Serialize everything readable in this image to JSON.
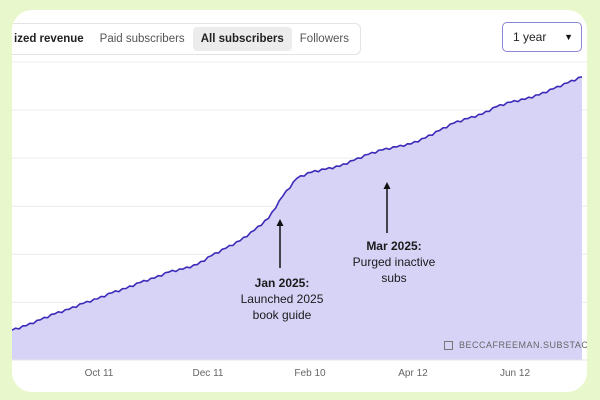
{
  "tabs": [
    {
      "label": "ized revenue"
    },
    {
      "label": "Paid subscribers"
    },
    {
      "label": "All subscribers"
    },
    {
      "label": "Followers"
    }
  ],
  "range_select": {
    "value": "1 year"
  },
  "annotations": [
    {
      "title": "Jan 2025:",
      "text_line1": "Launched 2025",
      "text_line2": "book guide"
    },
    {
      "title": "Mar 2025:",
      "text_line1": "Purged inactive",
      "text_line2": "subs"
    }
  ],
  "watermark": "BECCAFREEMAN.SUBSTACK.",
  "colors": {
    "line": "#3b2bb8",
    "fill": "#d6d3f7",
    "grid": "#ececec",
    "frame": "#e8f8cc"
  },
  "chart_data": {
    "type": "area",
    "title": "",
    "xlabel": "",
    "ylabel": "",
    "x_tick_labels": [
      "Oct 11",
      "Dec 11",
      "Feb 10",
      "Apr 12",
      "Jun 12"
    ],
    "grid": true,
    "series": [
      {
        "values": [
          20,
          23,
          27,
          31,
          34,
          38,
          41,
          45,
          48,
          52,
          55,
          59,
          61,
          64,
          70,
          75,
          80,
          87,
          95,
          110,
          122,
          126,
          128,
          130,
          134,
          138,
          141,
          143,
          145,
          149,
          154,
          159,
          162,
          165,
          170,
          173,
          175,
          178,
          182,
          186,
          190
        ]
      }
    ]
  }
}
